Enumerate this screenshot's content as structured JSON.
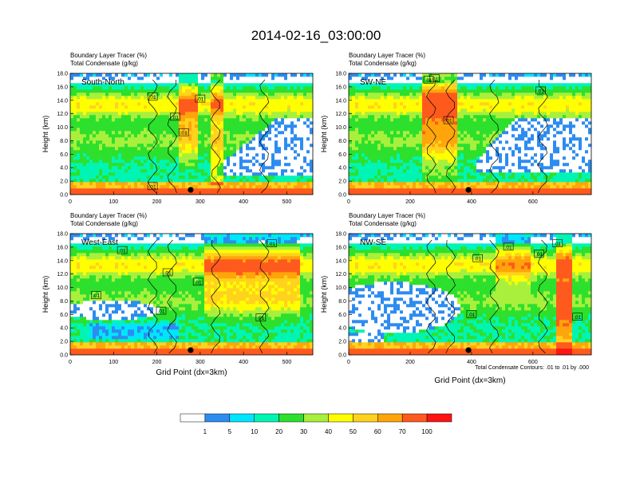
{
  "figure": {
    "title": "2014-02-16_03:00:00",
    "footnote": "Total Condensate Contours: .01 to .01 by .000"
  },
  "colorbar": {
    "colors": [
      "#ffffff",
      "#2d8cf0",
      "#00e5ff",
      "#00f5b4",
      "#2de02d",
      "#a8f03c",
      "#ffff00",
      "#ffd21e",
      "#ffa50a",
      "#ff5a1e",
      "#ff1414"
    ],
    "labels": [
      "1",
      "5",
      "10",
      "20",
      "30",
      "40",
      "50",
      "60",
      "70",
      "100"
    ]
  },
  "chart_data": [
    {
      "type": "heatmap",
      "panel": "top-left",
      "subtitle_line1": "Boundary Layer Tracer   (%)",
      "subtitle_line2": "Total Condensate   (g/kg)",
      "label": "South-North",
      "ylabel": "Height (km)",
      "xlabel": "",
      "xlim": [
        0,
        560
      ],
      "ylim": [
        0,
        18
      ],
      "xticks": [
        "0",
        "100",
        "200",
        "300",
        "400",
        "500"
      ],
      "xtick_values": [
        0,
        100,
        200,
        300,
        400,
        500
      ],
      "yticks": [
        "0.0",
        "2.0",
        "4.0",
        "6.0",
        "8.0",
        "10.0",
        "12.0",
        "14.0",
        "16.0",
        "18.0"
      ],
      "marker": {
        "x": 278,
        "y": 0.7
      },
      "contour_label": ".01",
      "contour_label_positions": [
        [
          190,
          14.5
        ],
        [
          242,
          11.5
        ],
        [
          262,
          9.2
        ],
        [
          300,
          14.2
        ],
        [
          190,
          1.2
        ]
      ]
    },
    {
      "type": "heatmap",
      "panel": "top-right",
      "subtitle_line1": "Boundary Layer Tracer   (%)",
      "subtitle_line2": "Total Condensate   (g/kg)",
      "label": "SW-NE",
      "ylabel": "Height (km)",
      "xlabel": "",
      "xlim": [
        0,
        790
      ],
      "ylim": [
        0,
        18
      ],
      "xticks": [
        "0",
        "200",
        "400",
        "600"
      ],
      "xtick_values": [
        0,
        200,
        400,
        600
      ],
      "yticks": [
        "0.0",
        "2.0",
        "4.0",
        "6.0",
        "8.0",
        "10.0",
        "12.0",
        "14.0",
        "16.0",
        "18.0"
      ],
      "marker": {
        "x": 390,
        "y": 0.7
      },
      "contour_label": ".01",
      "contour_label_positions": [
        [
          280,
          17.2
        ],
        [
          325,
          11.0
        ],
        [
          625,
          15.4
        ],
        [
          260,
          17.0
        ]
      ]
    },
    {
      "type": "heatmap",
      "panel": "bottom-left",
      "subtitle_line1": "Boundary Layer Tracer   (%)",
      "subtitle_line2": "Total Condensate   (g/kg)",
      "label": "West-East",
      "ylabel": "Height (km)",
      "xlabel": "Grid Point (dx=3km)",
      "xlim": [
        0,
        560
      ],
      "ylim": [
        0,
        18
      ],
      "xticks": [
        "0",
        "100",
        "200",
        "300",
        "400",
        "500"
      ],
      "xtick_values": [
        0,
        100,
        200,
        300,
        400,
        500
      ],
      "yticks": [
        "0.0",
        "2.0",
        "4.0",
        "6.0",
        "8.0",
        "10.0",
        "12.0",
        "14.0",
        "16.0",
        "18.0"
      ],
      "marker": {
        "x": 278,
        "y": 0.7
      },
      "contour_label": ".01",
      "contour_label_positions": [
        [
          120,
          15.5
        ],
        [
          225,
          12.2
        ],
        [
          295,
          10.8
        ],
        [
          60,
          8.8
        ],
        [
          210,
          6.5
        ],
        [
          440,
          5.5
        ],
        [
          465,
          16.5
        ]
      ]
    },
    {
      "type": "heatmap",
      "panel": "bottom-right",
      "subtitle_line1": "Boundary Layer Tracer   (%)",
      "subtitle_line2": "Total Condensate   (g/kg)",
      "label": "NW-SE",
      "ylabel": "",
      "xlabel": "Grid Point (dx=3km)",
      "xlim": [
        0,
        790
      ],
      "ylim": [
        0,
        18
      ],
      "xticks": [
        "0",
        "200",
        "400",
        "600"
      ],
      "xtick_values": [
        0,
        200,
        400,
        600
      ],
      "yticks": [
        "0.0",
        "2.0",
        "4.0",
        "6.0",
        "8.0",
        "10.0",
        "12.0",
        "14.0",
        "16.0",
        "18.0"
      ],
      "marker": {
        "x": 390,
        "y": 0.7
      },
      "contour_label": ".01",
      "contour_label_positions": [
        [
          420,
          14.3
        ],
        [
          520,
          16.0
        ],
        [
          620,
          15.0
        ],
        [
          400,
          6.0
        ],
        [
          745,
          5.6
        ],
        [
          680,
          16.5
        ]
      ]
    }
  ]
}
